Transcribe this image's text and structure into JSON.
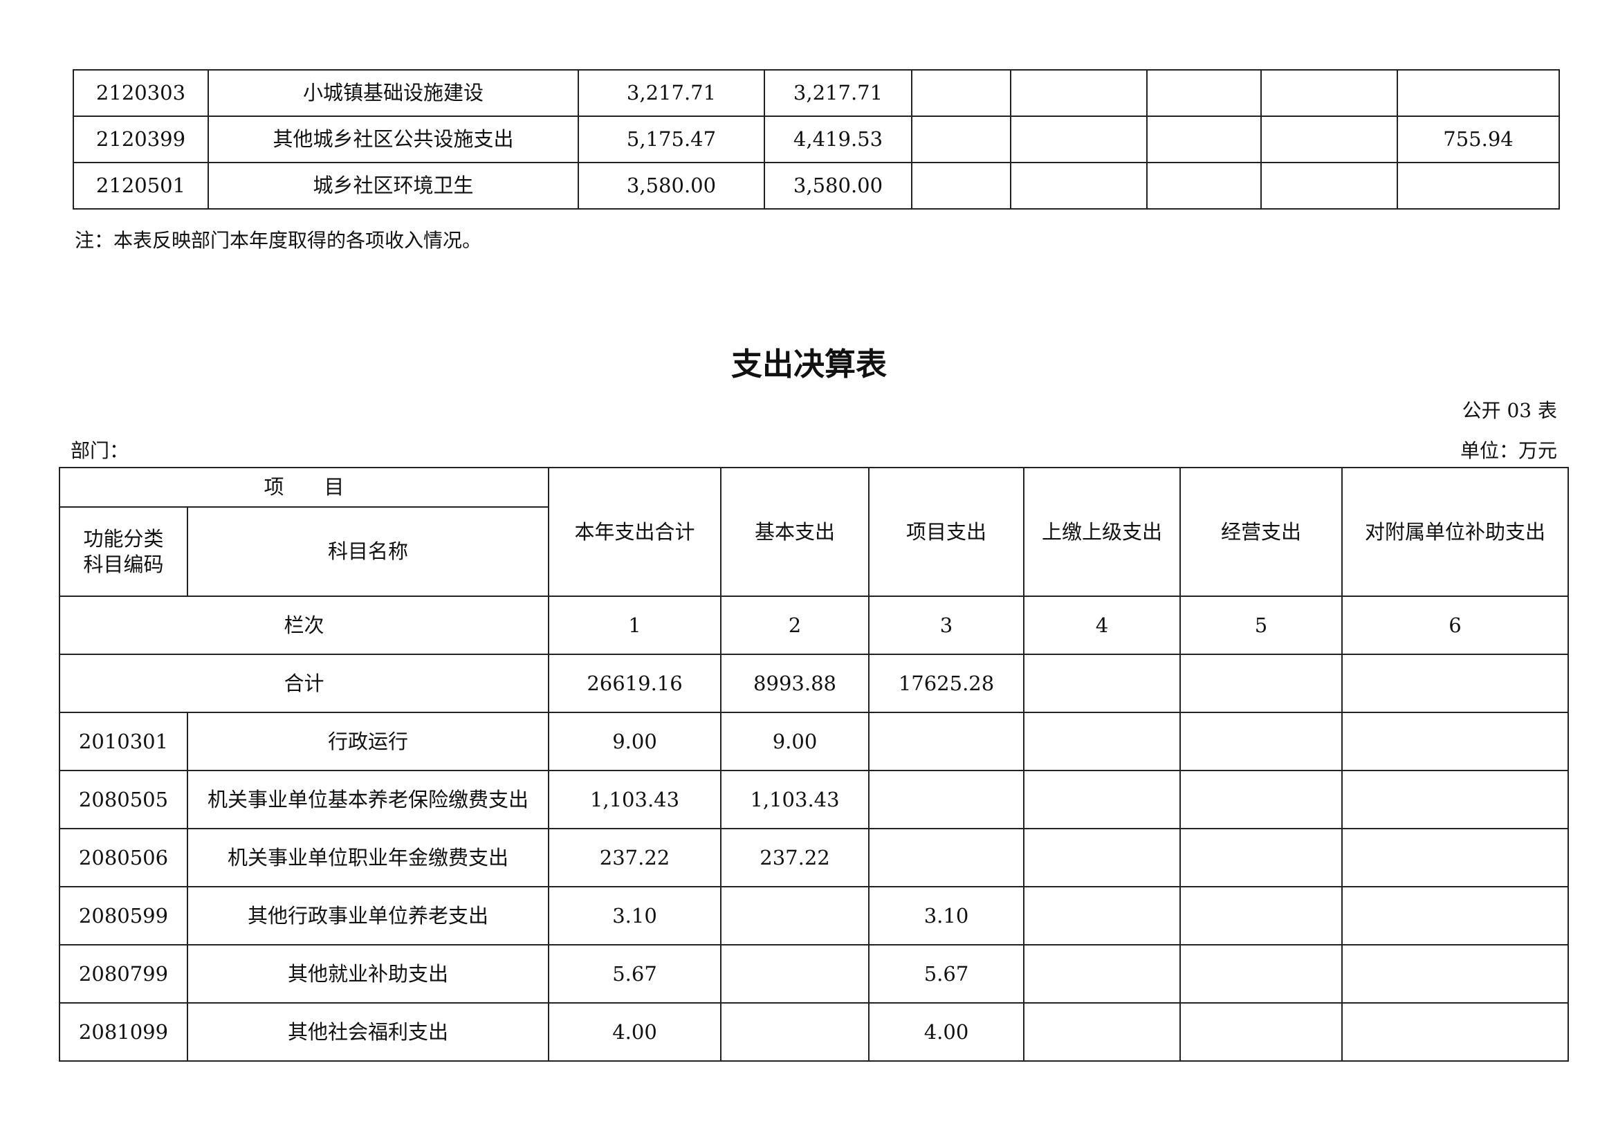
{
  "income_table": {
    "rows": [
      {
        "code": "2120303",
        "name": "小城镇基础设施建设",
        "c1": "3,217.71",
        "c2": "3,217.71",
        "c3": "",
        "c4": "",
        "c5": "",
        "c6": "",
        "c7": ""
      },
      {
        "code": "2120399",
        "name": "其他城乡社区公共设施支出",
        "c1": "5,175.47",
        "c2": "4,419.53",
        "c3": "",
        "c4": "",
        "c5": "",
        "c6": "",
        "c7": "755.94"
      },
      {
        "code": "2120501",
        "name": "城乡社区环境卫生",
        "c1": "3,580.00",
        "c2": "3,580.00",
        "c3": "",
        "c4": "",
        "c5": "",
        "c6": "",
        "c7": ""
      }
    ],
    "note": "注：本表反映部门本年度取得的各项收入情况。"
  },
  "expenditure": {
    "title": "支出决算表",
    "table_no": "公开 03 表",
    "department_label": "部门：",
    "unit_label": "单位：万元",
    "headers": {
      "item": "项　　目",
      "code": "功能分类科目编码",
      "name": "科目名称",
      "cols": [
        "本年支出合计",
        "基本支出",
        "项目支出",
        "上缴上级支出",
        "经营支出",
        "对附属单位补助支出"
      ]
    },
    "column_index_label": "栏次",
    "column_index": [
      "1",
      "2",
      "3",
      "4",
      "5",
      "6"
    ],
    "total": {
      "label": "合计",
      "values": [
        "26619.16",
        "8993.88",
        "17625.28",
        "",
        "",
        ""
      ]
    },
    "rows": [
      {
        "code": "2010301",
        "name": "行政运行",
        "values": [
          "9.00",
          "9.00",
          "",
          "",
          "",
          ""
        ]
      },
      {
        "code": "2080505",
        "name": "机关事业单位基本养老保险缴费支出",
        "values": [
          "1,103.43",
          "1,103.43",
          "",
          "",
          "",
          ""
        ]
      },
      {
        "code": "2080506",
        "name": "机关事业单位职业年金缴费支出",
        "values": [
          "237.22",
          "237.22",
          "",
          "",
          "",
          ""
        ]
      },
      {
        "code": "2080599",
        "name": "其他行政事业单位养老支出",
        "values": [
          "3.10",
          "",
          "3.10",
          "",
          "",
          ""
        ]
      },
      {
        "code": "2080799",
        "name": "其他就业补助支出",
        "values": [
          "5.67",
          "",
          "5.67",
          "",
          "",
          ""
        ]
      },
      {
        "code": "2081099",
        "name": "其他社会福利支出",
        "values": [
          "4.00",
          "",
          "4.00",
          "",
          "",
          ""
        ]
      }
    ]
  }
}
